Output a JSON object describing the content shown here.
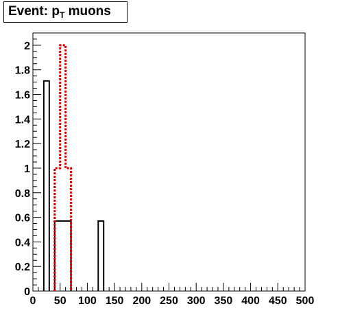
{
  "chart_data": {
    "type": "bar",
    "title_main": "Event: p",
    "title_sub": "T",
    "title_rest": " muons",
    "xlabel": "",
    "ylabel": "",
    "xlim": [
      0,
      500
    ],
    "ylim": [
      0,
      2.1
    ],
    "grid": false,
    "bin_width": 20,
    "x_ticks": [
      0,
      50,
      100,
      150,
      200,
      250,
      300,
      350,
      400,
      450,
      500
    ],
    "y_ticks": [
      0,
      0.2,
      0.4,
      0.6,
      0.8,
      1,
      1.2,
      1.4,
      1.6,
      1.8,
      2
    ],
    "series": [
      {
        "style": "solid",
        "color": "#000000",
        "bins": [
          {
            "x0": 20,
            "x1": 30,
            "y": 1.71
          },
          {
            "x0": 40,
            "x1": 70,
            "y": 0.57
          },
          {
            "x0": 120,
            "x1": 130,
            "y": 0.57
          }
        ]
      },
      {
        "style": "dashed",
        "color": "#cc0000",
        "bins": [
          {
            "x0": 40,
            "x1": 50,
            "y": 1.0
          },
          {
            "x0": 50,
            "x1": 60,
            "y": 2.0
          },
          {
            "x0": 60,
            "x1": 70,
            "y": 1.0
          }
        ]
      }
    ]
  }
}
